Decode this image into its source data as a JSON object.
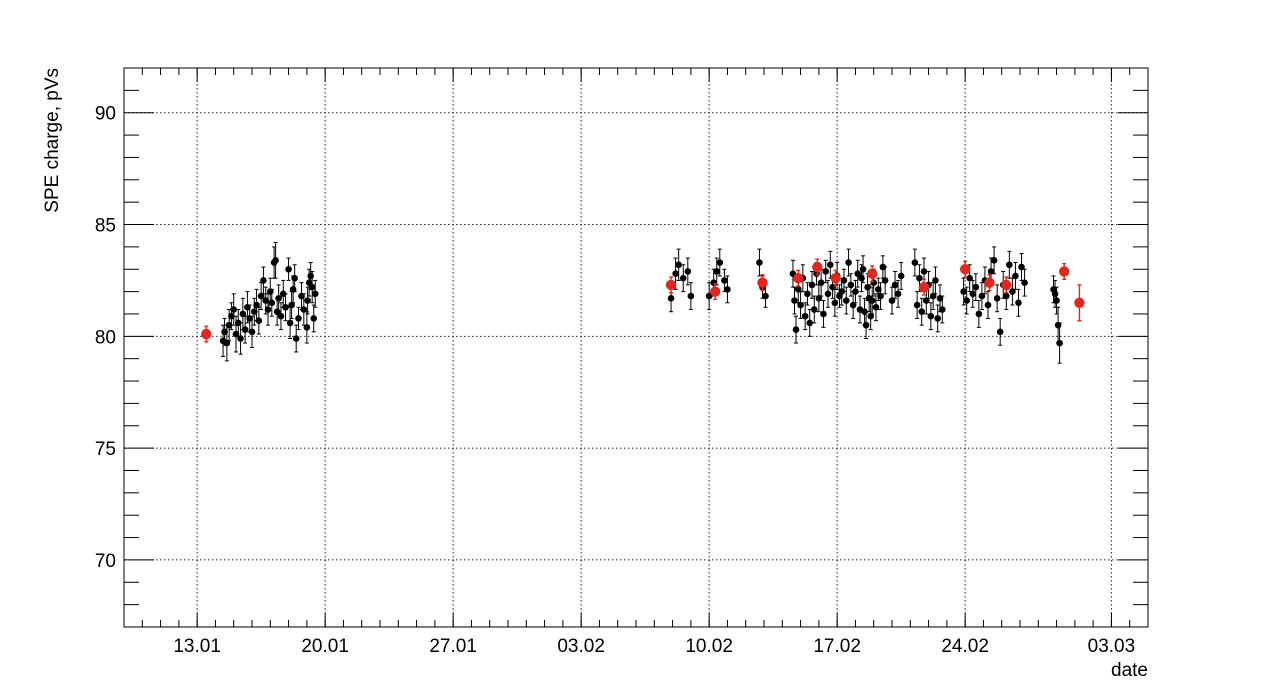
{
  "chart_data": {
    "type": "scatter",
    "title": "",
    "xlabel": "date",
    "ylabel": "SPE charge, pVs",
    "x_is_date": true,
    "x_range": [
      "2020-01-09",
      "2020-03-05"
    ],
    "ylim": [
      67,
      92
    ],
    "x_ticks": [
      {
        "date": "2020-01-13",
        "label": "13.01"
      },
      {
        "date": "2020-01-20",
        "label": "20.01"
      },
      {
        "date": "2020-01-27",
        "label": "27.01"
      },
      {
        "date": "2020-02-03",
        "label": "03.02"
      },
      {
        "date": "2020-02-10",
        "label": "10.02"
      },
      {
        "date": "2020-02-17",
        "label": "17.02"
      },
      {
        "date": "2020-02-24",
        "label": "24.02"
      },
      {
        "date": "2020-03-03",
        "label": "03.03"
      }
    ],
    "y_ticks": [
      70,
      75,
      80,
      85,
      90
    ],
    "y_tick_labels": [
      "70",
      "75",
      "80",
      "85",
      "90"
    ],
    "grid": true,
    "legend": false,
    "series": [
      {
        "color": "#000000",
        "marker": "circle",
        "points": [
          [
            "2020-01-14T10:00",
            79.8,
            0.7
          ],
          [
            "2020-01-14T12:00",
            80.2,
            0.6
          ],
          [
            "2020-01-14T15:00",
            79.7,
            0.8
          ],
          [
            "2020-01-14T18:00",
            80.5,
            0.7
          ],
          [
            "2020-01-14T21:00",
            80.9,
            0.6
          ],
          [
            "2020-01-15T00:00",
            81.2,
            0.7
          ],
          [
            "2020-01-15T03:00",
            80.1,
            0.8
          ],
          [
            "2020-01-15T06:00",
            80.6,
            0.6
          ],
          [
            "2020-01-15T09:00",
            79.9,
            0.7
          ],
          [
            "2020-01-15T12:00",
            81.0,
            0.7
          ],
          [
            "2020-01-15T15:00",
            80.3,
            0.6
          ],
          [
            "2020-01-15T18:00",
            81.3,
            0.7
          ],
          [
            "2020-01-15T21:00",
            80.8,
            0.6
          ],
          [
            "2020-01-16T00:00",
            80.2,
            0.7
          ],
          [
            "2020-01-16T03:00",
            81.1,
            0.6
          ],
          [
            "2020-01-16T06:00",
            81.4,
            0.7
          ],
          [
            "2020-01-16T09:00",
            80.7,
            0.6
          ],
          [
            "2020-01-16T12:00",
            81.8,
            0.6
          ],
          [
            "2020-01-16T15:00",
            82.5,
            0.6
          ],
          [
            "2020-01-16T18:00",
            81.6,
            0.6
          ],
          [
            "2020-01-16T21:00",
            81.2,
            0.7
          ],
          [
            "2020-01-17T00:00",
            82.0,
            0.6
          ],
          [
            "2020-01-17T02:00",
            81.5,
            0.6
          ],
          [
            "2020-01-17T05:00",
            83.3,
            0.7
          ],
          [
            "2020-01-17T07:00",
            83.4,
            0.8
          ],
          [
            "2020-01-17T09:00",
            81.1,
            0.6
          ],
          [
            "2020-01-17T11:00",
            81.7,
            0.6
          ],
          [
            "2020-01-17T14:00",
            80.9,
            0.6
          ],
          [
            "2020-01-17T17:00",
            81.9,
            0.6
          ],
          [
            "2020-01-17T20:00",
            81.3,
            0.6
          ],
          [
            "2020-01-18T00:00",
            83.0,
            0.5
          ],
          [
            "2020-01-18T02:00",
            80.6,
            0.7
          ],
          [
            "2020-01-18T04:00",
            81.4,
            0.6
          ],
          [
            "2020-01-18T06:00",
            82.1,
            0.6
          ],
          [
            "2020-01-18T08:00",
            82.6,
            0.6
          ],
          [
            "2020-01-18T10:00",
            79.9,
            0.6
          ],
          [
            "2020-01-18T13:00",
            80.8,
            0.5
          ],
          [
            "2020-01-18T17:00",
            81.8,
            0.6
          ],
          [
            "2020-01-18T20:00",
            81.2,
            0.7
          ],
          [
            "2020-01-19T00:00",
            80.4,
            0.7
          ],
          [
            "2020-01-19T01:00",
            81.6,
            0.6
          ],
          [
            "2020-01-19T03:00",
            82.4,
            0.6
          ],
          [
            "2020-01-19T05:00",
            82.7,
            0.6
          ],
          [
            "2020-01-19T07:00",
            82.2,
            0.7
          ],
          [
            "2020-01-19T09:00",
            80.8,
            0.6
          ],
          [
            "2020-01-19T11:00",
            81.9,
            0.6
          ],
          [
            "2020-02-07T22:00",
            81.7,
            0.6
          ],
          [
            "2020-02-08T04:00",
            82.8,
            0.7
          ],
          [
            "2020-02-08T08:00",
            83.2,
            0.7
          ],
          [
            "2020-02-08T14:00",
            82.6,
            0.6
          ],
          [
            "2020-02-08T20:00",
            82.9,
            0.6
          ],
          [
            "2020-02-09T00:00",
            81.8,
            0.6
          ],
          [
            "2020-02-10T00:00",
            81.8,
            0.6
          ],
          [
            "2020-02-10T06:00",
            82.4,
            0.6
          ],
          [
            "2020-02-10T10:00",
            82.9,
            0.6
          ],
          [
            "2020-02-10T14:00",
            83.3,
            0.6
          ],
          [
            "2020-02-10T20:00",
            82.5,
            0.5
          ],
          [
            "2020-02-11T00:00",
            82.1,
            0.6
          ],
          [
            "2020-02-12T18:00",
            83.3,
            0.6
          ],
          [
            "2020-02-12T22:00",
            82.2,
            0.5
          ],
          [
            "2020-02-13T02:00",
            81.8,
            0.5
          ],
          [
            "2020-02-14T14:00",
            82.8,
            0.6
          ],
          [
            "2020-02-14T16:00",
            81.6,
            0.6
          ],
          [
            "2020-02-14T18:00",
            80.3,
            0.6
          ],
          [
            "2020-02-14T21:00",
            82.1,
            0.6
          ],
          [
            "2020-02-15T00:00",
            81.4,
            0.6
          ],
          [
            "2020-02-15T03:00",
            82.6,
            0.6
          ],
          [
            "2020-02-15T06:00",
            80.9,
            0.6
          ],
          [
            "2020-02-15T09:00",
            81.9,
            0.5
          ],
          [
            "2020-02-15T12:00",
            80.6,
            0.6
          ],
          [
            "2020-02-15T15:00",
            82.3,
            0.6
          ],
          [
            "2020-02-15T18:00",
            81.2,
            0.6
          ],
          [
            "2020-02-15T21:00",
            82.8,
            0.5
          ],
          [
            "2020-02-16T00:00",
            81.7,
            0.6
          ],
          [
            "2020-02-16T03:00",
            82.4,
            0.6
          ],
          [
            "2020-02-16T06:00",
            81.0,
            0.6
          ],
          [
            "2020-02-16T09:00",
            82.9,
            0.5
          ],
          [
            "2020-02-16T12:00",
            81.9,
            0.6
          ],
          [
            "2020-02-16T15:00",
            83.2,
            0.6
          ],
          [
            "2020-02-16T18:00",
            82.2,
            0.5
          ],
          [
            "2020-02-16T21:00",
            81.5,
            0.6
          ],
          [
            "2020-02-17T00:00",
            82.7,
            0.6
          ],
          [
            "2020-02-17T03:00",
            81.8,
            0.5
          ],
          [
            "2020-02-17T06:00",
            82.0,
            0.6
          ],
          [
            "2020-02-17T09:00",
            82.5,
            0.5
          ],
          [
            "2020-02-17T12:00",
            81.6,
            0.6
          ],
          [
            "2020-02-17T15:00",
            83.3,
            0.6
          ],
          [
            "2020-02-17T18:00",
            82.3,
            0.5
          ],
          [
            "2020-02-17T21:00",
            81.4,
            0.6
          ],
          [
            "2020-02-18T00:00",
            82.0,
            0.5
          ],
          [
            "2020-02-18T03:00",
            82.8,
            0.6
          ],
          [
            "2020-02-18T06:00",
            81.2,
            0.6
          ],
          [
            "2020-02-18T08:00",
            82.6,
            0.6
          ],
          [
            "2020-02-18T10:00",
            83.0,
            0.6
          ],
          [
            "2020-02-18T12:00",
            81.1,
            0.6
          ],
          [
            "2020-02-18T14:00",
            80.5,
            0.6
          ],
          [
            "2020-02-18T16:00",
            82.2,
            0.6
          ],
          [
            "2020-02-18T18:00",
            81.7,
            0.6
          ],
          [
            "2020-02-18T20:00",
            80.9,
            0.6
          ],
          [
            "2020-02-18T22:00",
            81.6,
            0.6
          ],
          [
            "2020-02-19T00:00",
            82.4,
            0.6
          ],
          [
            "2020-02-19T03:00",
            81.3,
            0.6
          ],
          [
            "2020-02-19T06:00",
            82.1,
            0.5
          ],
          [
            "2020-02-19T09:00",
            81.8,
            0.6
          ],
          [
            "2020-02-19T12:00",
            83.1,
            0.5
          ],
          [
            "2020-02-19T15:00",
            82.5,
            0.6
          ],
          [
            "2020-02-20T00:00",
            81.6,
            0.6
          ],
          [
            "2020-02-20T04:00",
            82.3,
            0.6
          ],
          [
            "2020-02-20T08:00",
            81.9,
            0.6
          ],
          [
            "2020-02-20T12:00",
            82.7,
            0.6
          ],
          [
            "2020-02-21T06:00",
            83.3,
            0.6
          ],
          [
            "2020-02-21T09:00",
            81.4,
            0.6
          ],
          [
            "2020-02-21T12:00",
            82.6,
            0.6
          ],
          [
            "2020-02-21T15:00",
            81.1,
            0.6
          ],
          [
            "2020-02-21T18:00",
            82.9,
            0.6
          ],
          [
            "2020-02-21T21:00",
            81.6,
            0.6
          ],
          [
            "2020-02-22T00:00",
            82.3,
            0.6
          ],
          [
            "2020-02-22T03:00",
            80.9,
            0.6
          ],
          [
            "2020-02-22T06:00",
            81.8,
            0.6
          ],
          [
            "2020-02-22T09:00",
            82.5,
            0.6
          ],
          [
            "2020-02-22T12:00",
            80.8,
            0.6
          ],
          [
            "2020-02-22T15:00",
            81.7,
            0.6
          ],
          [
            "2020-02-22T18:00",
            81.2,
            0.6
          ],
          [
            "2020-02-23T22:00",
            82.0,
            0.6
          ],
          [
            "2020-02-24T02:00",
            81.6,
            0.6
          ],
          [
            "2020-02-24T06:00",
            82.6,
            0.6
          ],
          [
            "2020-02-24T10:00",
            81.9,
            0.6
          ],
          [
            "2020-02-24T14:00",
            82.2,
            0.6
          ],
          [
            "2020-02-24T18:00",
            81.0,
            0.6
          ],
          [
            "2020-02-24T22:00",
            81.8,
            0.6
          ],
          [
            "2020-02-25T02:00",
            82.5,
            0.6
          ],
          [
            "2020-02-25T06:00",
            81.4,
            0.6
          ],
          [
            "2020-02-25T10:00",
            82.9,
            0.6
          ],
          [
            "2020-02-25T14:00",
            83.4,
            0.6
          ],
          [
            "2020-02-25T18:00",
            81.7,
            0.6
          ],
          [
            "2020-02-25T22:00",
            80.2,
            0.6
          ],
          [
            "2020-02-26T02:00",
            82.3,
            0.6
          ],
          [
            "2020-02-26T06:00",
            81.8,
            0.6
          ],
          [
            "2020-02-26T10:00",
            83.2,
            0.6
          ],
          [
            "2020-02-26T14:00",
            82.0,
            0.6
          ],
          [
            "2020-02-26T18:00",
            82.7,
            0.6
          ],
          [
            "2020-02-26T22:00",
            81.5,
            0.6
          ],
          [
            "2020-02-27T02:00",
            83.1,
            0.6
          ],
          [
            "2020-02-27T06:00",
            82.4,
            0.6
          ],
          [
            "2020-02-28T20:00",
            82.1,
            0.6
          ],
          [
            "2020-02-28T22:00",
            81.9,
            0.6
          ],
          [
            "2020-02-29T00:00",
            81.6,
            0.6
          ],
          [
            "2020-02-29T02:00",
            80.5,
            0.8
          ],
          [
            "2020-02-29T04:00",
            79.7,
            0.9
          ]
        ]
      },
      {
        "color": "#e0281e",
        "marker": "circle",
        "points": [
          [
            "2020-01-13T12:00",
            80.1,
            0.35
          ],
          [
            "2020-02-07T22:00",
            82.3,
            0.35
          ],
          [
            "2020-02-10T08:00",
            82.0,
            0.35
          ],
          [
            "2020-02-12T22:00",
            82.4,
            0.35
          ],
          [
            "2020-02-14T21:00",
            82.6,
            0.35
          ],
          [
            "2020-02-15T22:00",
            83.1,
            0.35
          ],
          [
            "2020-02-16T22:00",
            82.6,
            0.35
          ],
          [
            "2020-02-18T22:00",
            82.8,
            0.35
          ],
          [
            "2020-02-21T18:00",
            82.2,
            0.35
          ],
          [
            "2020-02-24T00:00",
            83.0,
            0.35
          ],
          [
            "2020-02-25T08:00",
            82.4,
            0.35
          ],
          [
            "2020-02-26T06:00",
            82.3,
            0.35
          ],
          [
            "2020-02-29T10:00",
            82.9,
            0.35
          ],
          [
            "2020-03-01T06:00",
            81.5,
            0.8
          ]
        ]
      }
    ]
  }
}
